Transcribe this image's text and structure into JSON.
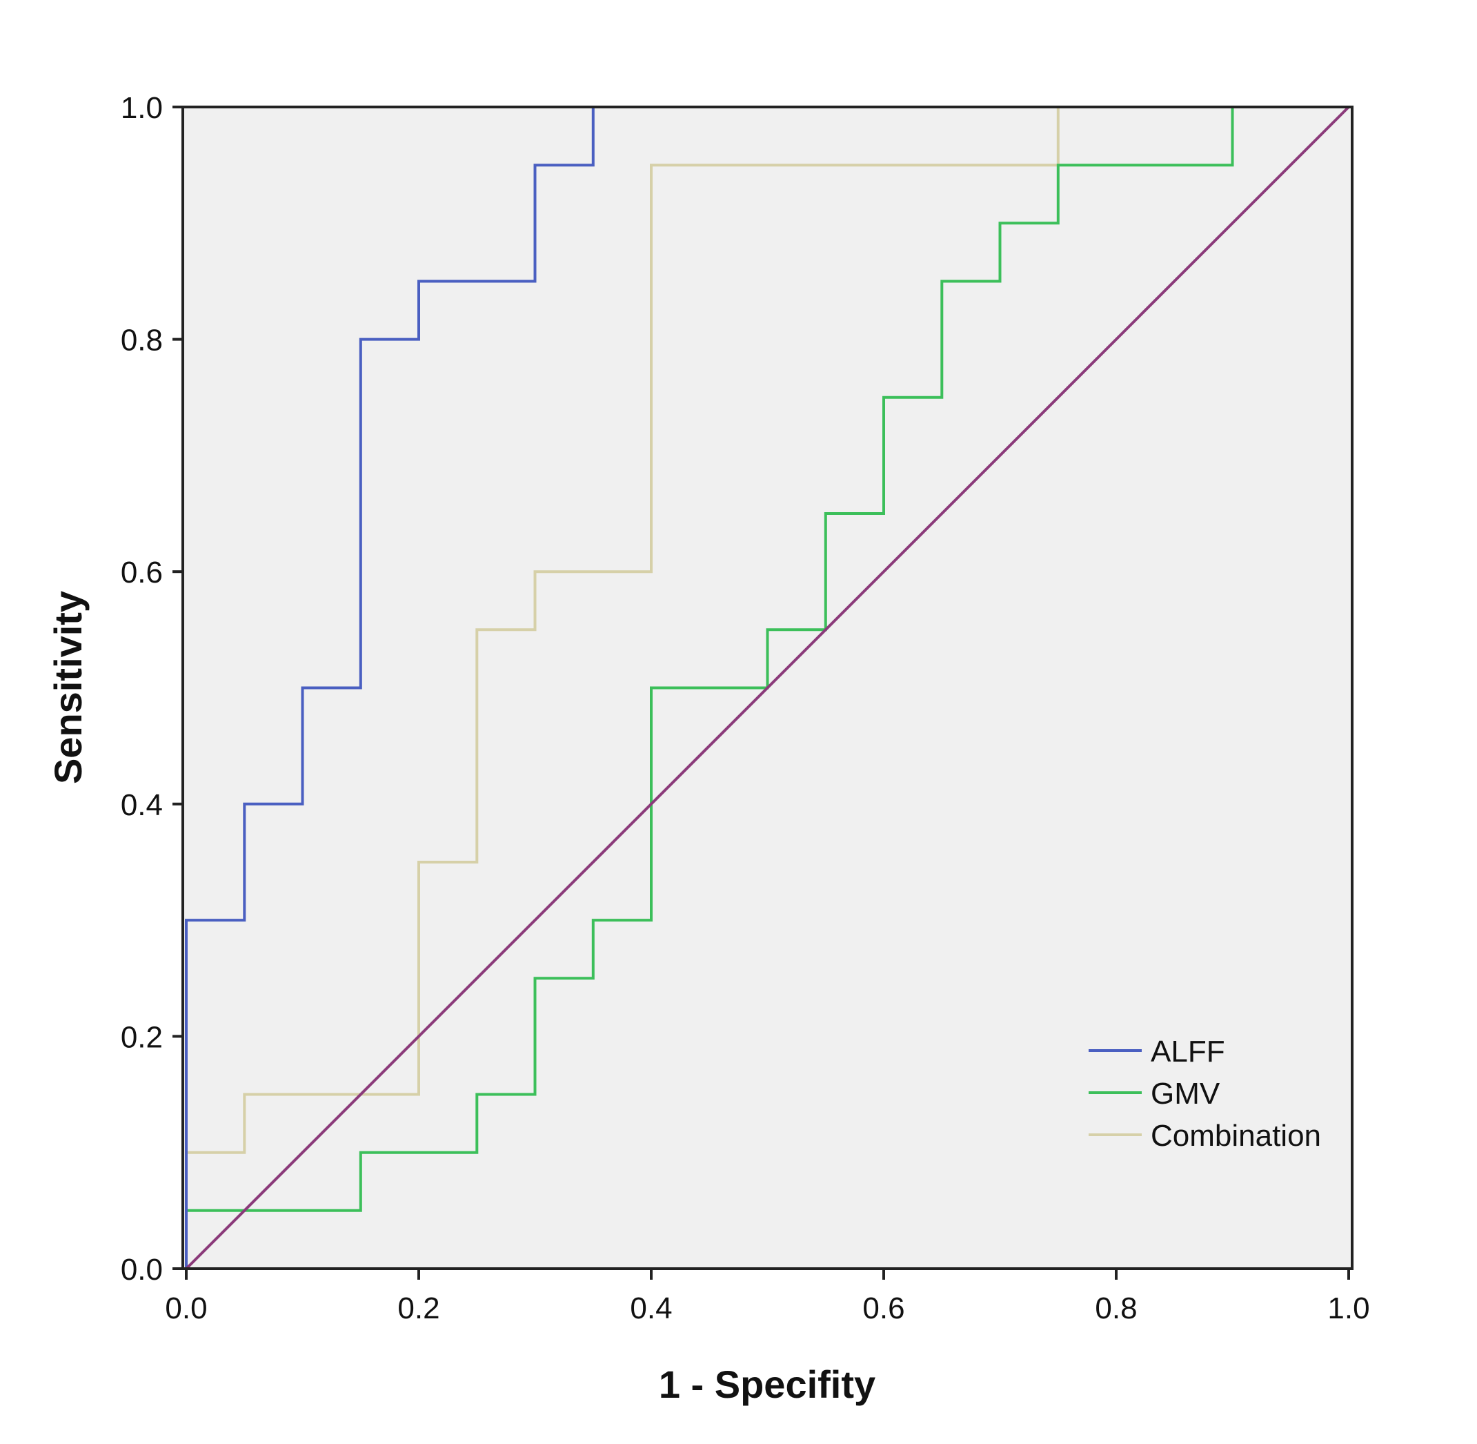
{
  "chart_data": {
    "type": "line",
    "title": "",
    "xlabel": "1 - Specifity",
    "ylabel": "Sensitivity",
    "xlim": [
      0,
      1
    ],
    "ylim": [
      0,
      1
    ],
    "x_ticks": [
      "0.0",
      "0.2",
      "0.4",
      "0.6",
      "0.8",
      "1.0"
    ],
    "y_ticks": [
      "0.0",
      "0.2",
      "0.4",
      "0.6",
      "0.8",
      "1.0"
    ],
    "grid": false,
    "legend_position": "bottom-right",
    "plot_background": "#f0f0f0",
    "series": [
      {
        "name": "ALFF",
        "color": "#4a5fc1",
        "points": [
          [
            0,
            0
          ],
          [
            0,
            0.3
          ],
          [
            0.05,
            0.3
          ],
          [
            0.05,
            0.4
          ],
          [
            0.1,
            0.4
          ],
          [
            0.1,
            0.5
          ],
          [
            0.15,
            0.5
          ],
          [
            0.15,
            0.8
          ],
          [
            0.2,
            0.8
          ],
          [
            0.2,
            0.85
          ],
          [
            0.3,
            0.85
          ],
          [
            0.3,
            0.95
          ],
          [
            0.35,
            0.95
          ],
          [
            0.35,
            1.0
          ],
          [
            1.0,
            1.0
          ]
        ]
      },
      {
        "name": "GMV",
        "color": "#3cbf5a",
        "points": [
          [
            0,
            0
          ],
          [
            0,
            0.05
          ],
          [
            0.15,
            0.05
          ],
          [
            0.15,
            0.1
          ],
          [
            0.25,
            0.1
          ],
          [
            0.25,
            0.15
          ],
          [
            0.3,
            0.15
          ],
          [
            0.3,
            0.25
          ],
          [
            0.35,
            0.25
          ],
          [
            0.35,
            0.3
          ],
          [
            0.4,
            0.3
          ],
          [
            0.4,
            0.5
          ],
          [
            0.5,
            0.5
          ],
          [
            0.5,
            0.55
          ],
          [
            0.55,
            0.55
          ],
          [
            0.55,
            0.65
          ],
          [
            0.6,
            0.65
          ],
          [
            0.6,
            0.75
          ],
          [
            0.65,
            0.75
          ],
          [
            0.65,
            0.85
          ],
          [
            0.7,
            0.85
          ],
          [
            0.7,
            0.9
          ],
          [
            0.75,
            0.9
          ],
          [
            0.75,
            0.95
          ],
          [
            0.9,
            0.95
          ],
          [
            0.9,
            1.0
          ],
          [
            1.0,
            1.0
          ]
        ]
      },
      {
        "name": "Combination",
        "color": "#d6d0a8",
        "points": [
          [
            0,
            0
          ],
          [
            0,
            0.1
          ],
          [
            0.05,
            0.1
          ],
          [
            0.05,
            0.15
          ],
          [
            0.2,
            0.15
          ],
          [
            0.2,
            0.35
          ],
          [
            0.25,
            0.35
          ],
          [
            0.25,
            0.55
          ],
          [
            0.3,
            0.55
          ],
          [
            0.3,
            0.6
          ],
          [
            0.4,
            0.6
          ],
          [
            0.4,
            0.95
          ],
          [
            0.75,
            0.95
          ],
          [
            0.75,
            1.0
          ],
          [
            1.0,
            1.0
          ]
        ]
      }
    ],
    "reference_line": {
      "color": "#8b3a7a",
      "points": [
        [
          0,
          0
        ],
        [
          1,
          1
        ]
      ]
    }
  }
}
